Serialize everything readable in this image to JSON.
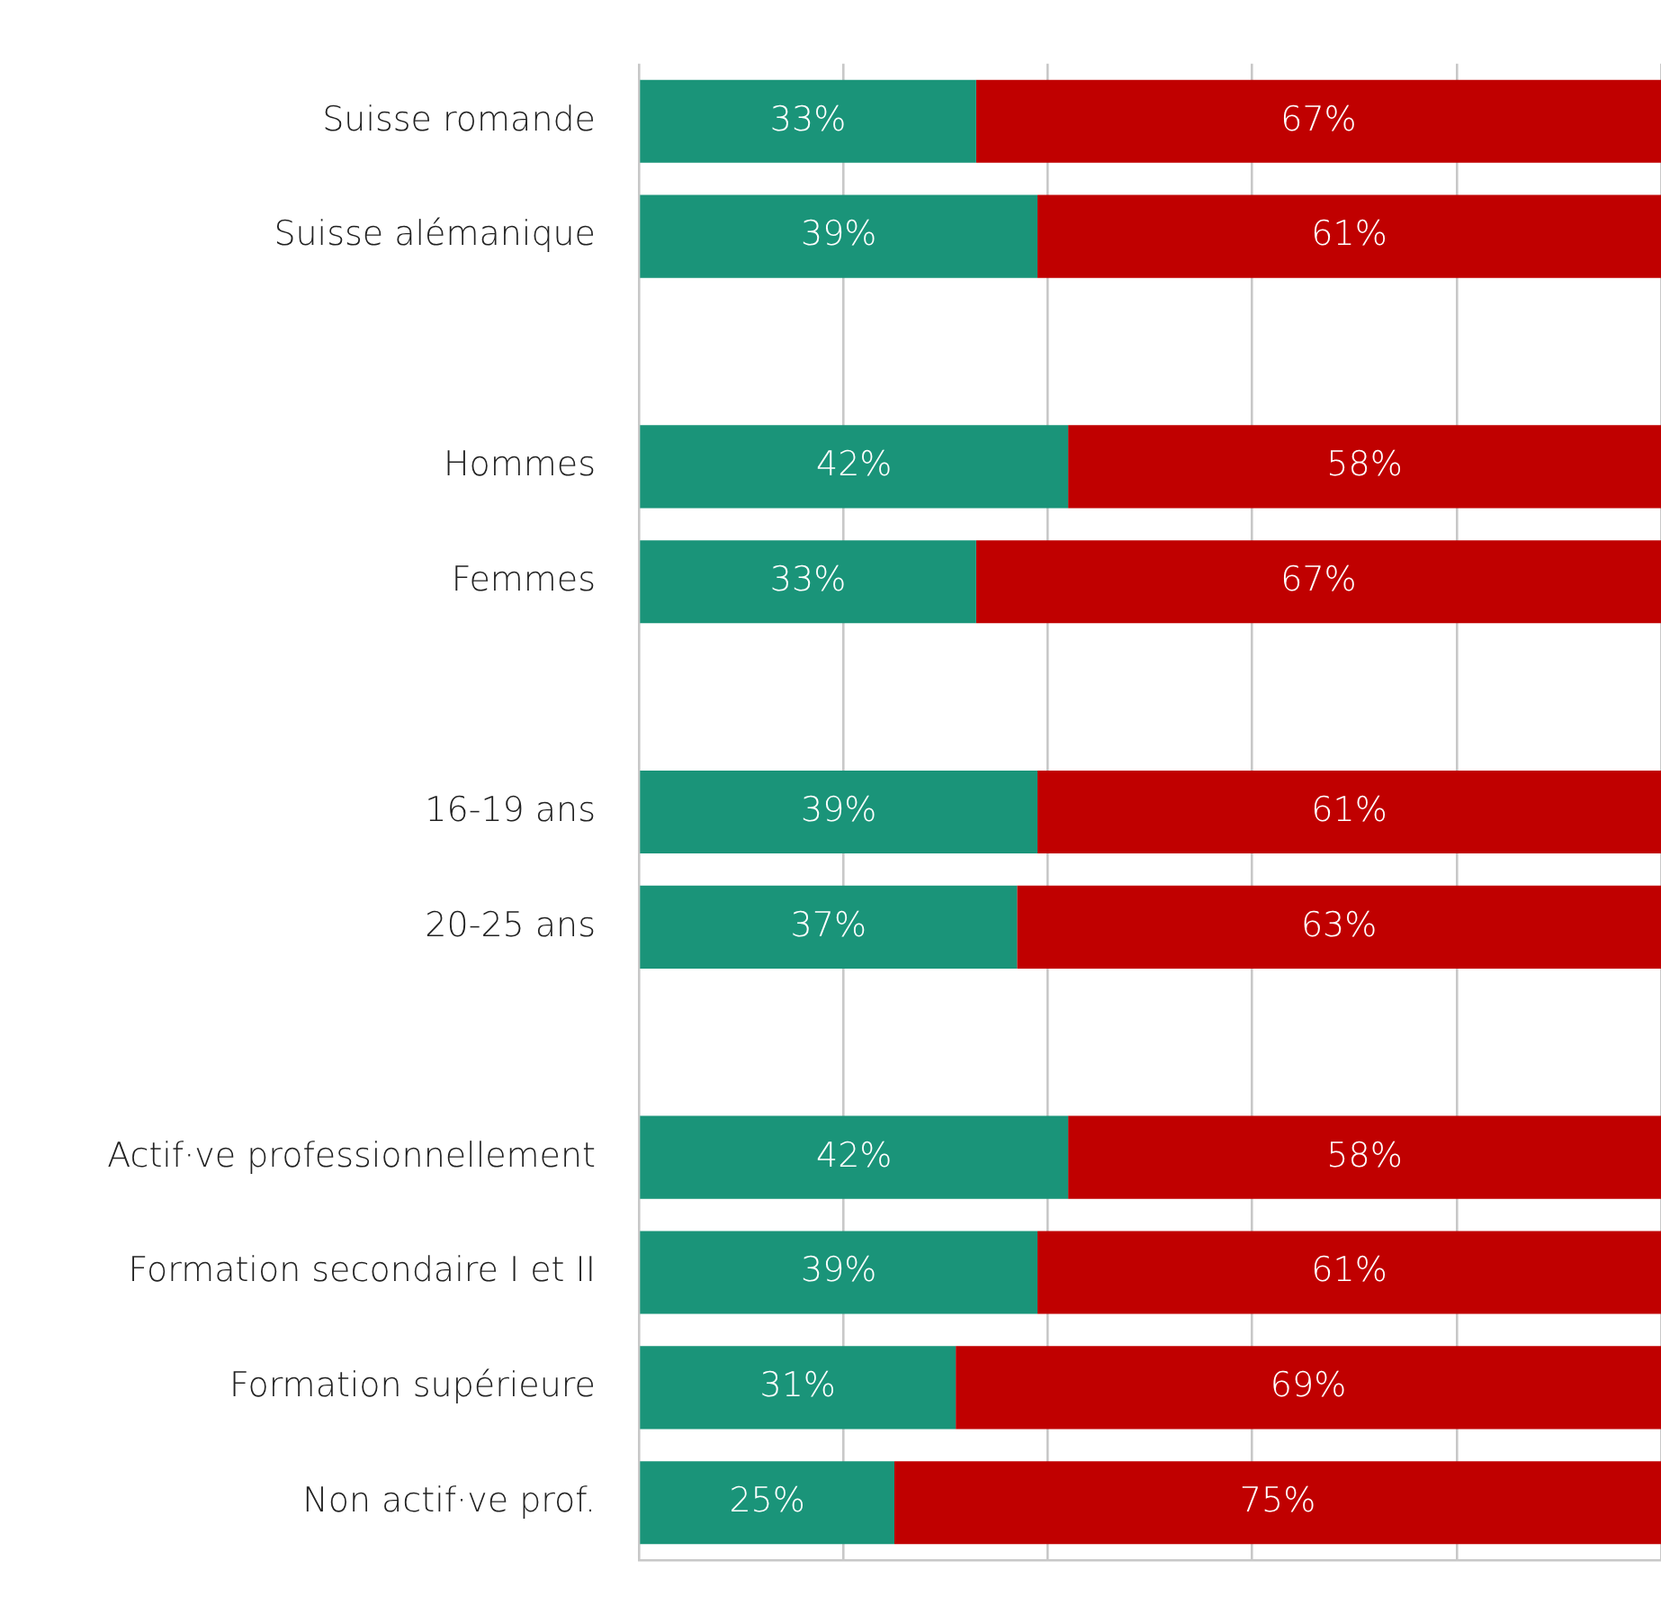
{
  "chart_data": {
    "type": "bar",
    "orientation": "horizontal",
    "stacked": true,
    "categories": [
      "Suisse romande",
      "Suisse alémanique",
      null,
      "Hommes",
      "Femmes",
      null,
      "16-19 ans",
      "20-25 ans",
      null,
      "Actif·ve professionnellement",
      "Formation secondaire I et II",
      "Formation supérieure",
      "Non actif·ve prof."
    ],
    "series": [
      {
        "color": "#1a9479",
        "values": [
          33,
          39,
          null,
          42,
          33,
          null,
          39,
          37,
          null,
          42,
          39,
          31,
          25
        ],
        "value_labels": [
          "33%",
          "39%",
          null,
          "42%",
          "33%",
          null,
          "39%",
          "37%",
          null,
          "42%",
          "39%",
          "31%",
          "25%"
        ]
      },
      {
        "color": "#c00000",
        "values": [
          67,
          61,
          null,
          58,
          67,
          null,
          61,
          63,
          null,
          58,
          61,
          69,
          75
        ],
        "value_labels": [
          "67%",
          "61%",
          null,
          "58%",
          "67%",
          null,
          "61%",
          "63%",
          null,
          "58%",
          "61%",
          "69%",
          "75%"
        ]
      }
    ],
    "xlim": [
      0,
      100
    ],
    "xticks": [
      {
        "value": 0,
        "label": null
      },
      {
        "value": 20,
        "label": null
      },
      {
        "value": 40,
        "label": null
      },
      {
        "value": 60,
        "label": null
      },
      {
        "value": 80,
        "label": null
      },
      {
        "value": 100,
        "label": null
      }
    ],
    "grid": "x",
    "legend": false,
    "tick_labels": "y"
  }
}
